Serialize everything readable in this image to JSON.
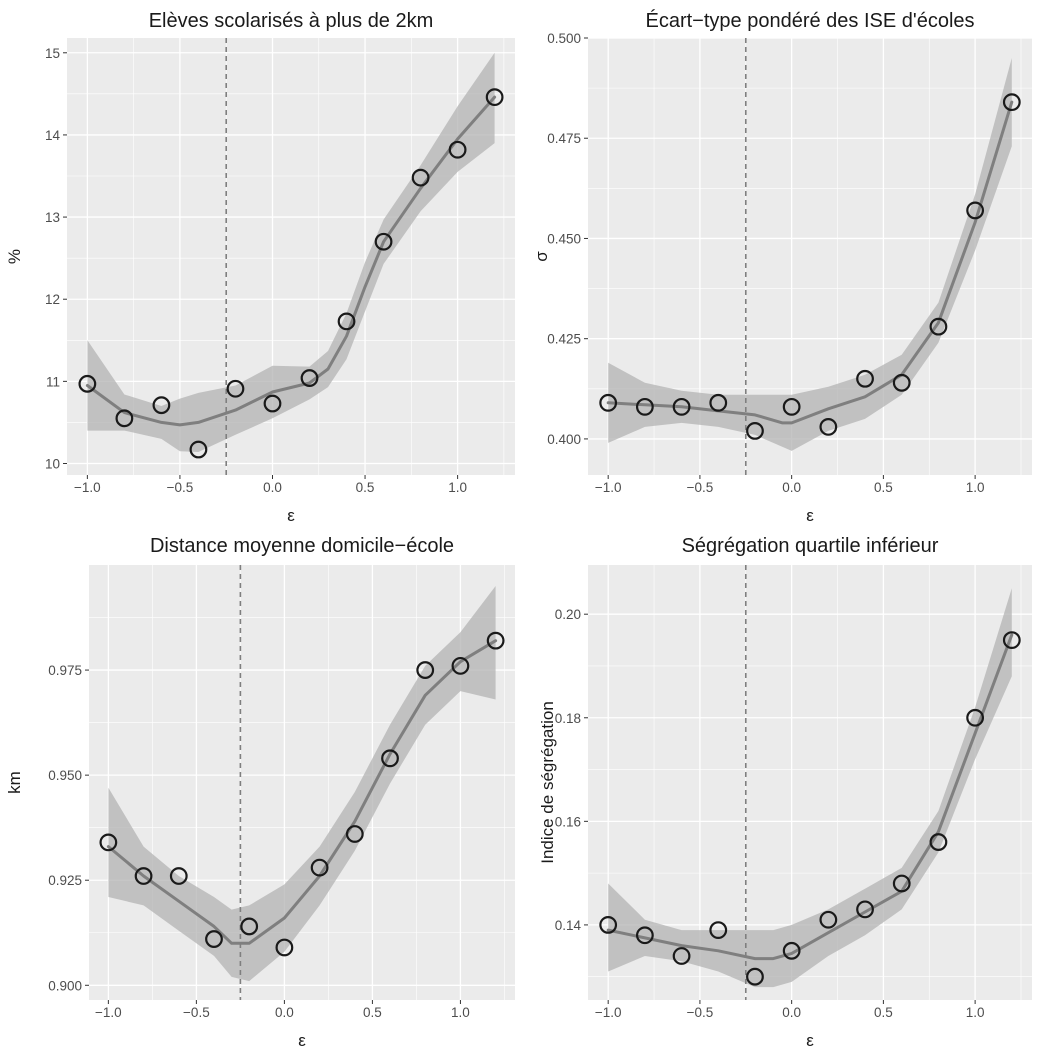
{
  "figure": {
    "colors": {
      "panel_bg": "#ebebeb",
      "grid_major": "#ffffff",
      "ribbon": "#b3b3b3",
      "smooth_line": "#7f7f7f",
      "points": "#1a1a1a",
      "vline": "#7f7f7f"
    }
  },
  "chart_data": [
    {
      "type": "scatter",
      "title": "Elèves scolarisés à plus de 2km",
      "xlabel": "ε",
      "ylabel": "%",
      "xlim": [
        -1.11,
        1.31
      ],
      "ylim": [
        9.86,
        15.18
      ],
      "xticks": [
        -1.0,
        -0.5,
        0.0,
        0.5,
        1.0
      ],
      "xtick_labels": [
        "−1.0",
        "−0.5",
        "0.0",
        "0.5",
        "1.0"
      ],
      "yticks": [
        10,
        11,
        12,
        13,
        14,
        15
      ],
      "ytick_labels": [
        "10",
        "11",
        "12",
        "13",
        "14",
        "15"
      ],
      "vline_x": -0.25,
      "points": {
        "x": [
          -1.0,
          -0.8,
          -0.6,
          -0.4,
          -0.2,
          0.0,
          0.2,
          0.4,
          0.6,
          0.8,
          1.0,
          1.2
        ],
        "y": [
          10.97,
          10.55,
          10.71,
          10.17,
          10.91,
          10.73,
          11.04,
          11.73,
          12.7,
          13.48,
          13.82,
          14.46
        ]
      },
      "smooth": {
        "x": [
          -1.0,
          -0.8,
          -0.6,
          -0.5,
          -0.4,
          -0.2,
          0.0,
          0.2,
          0.3,
          0.4,
          0.5,
          0.6,
          0.8,
          1.0,
          1.2
        ],
        "y": [
          10.95,
          10.62,
          10.5,
          10.47,
          10.5,
          10.65,
          10.87,
          10.98,
          11.15,
          11.55,
          12.15,
          12.7,
          13.35,
          13.95,
          14.46
        ],
        "lower": [
          10.4,
          10.4,
          10.3,
          10.15,
          10.14,
          10.35,
          10.55,
          10.78,
          10.93,
          11.27,
          11.85,
          12.43,
          13.07,
          13.55,
          13.9
        ],
        "upper": [
          11.5,
          10.84,
          10.7,
          10.79,
          10.86,
          10.95,
          11.19,
          11.18,
          11.37,
          11.83,
          12.45,
          12.97,
          13.63,
          14.35,
          15.0
        ]
      }
    },
    {
      "type": "scatter",
      "title": "Écart−type pondéré des ISE d'écoles",
      "xlabel": "ε",
      "ylabel": "σ",
      "xlim": [
        -1.11,
        1.31
      ],
      "ylim": [
        0.391,
        0.5
      ],
      "xticks": [
        -1.0,
        -0.5,
        0.0,
        0.5,
        1.0
      ],
      "xtick_labels": [
        "−1.0",
        "−0.5",
        "0.0",
        "0.5",
        "1.0"
      ],
      "yticks": [
        0.4,
        0.425,
        0.45,
        0.475,
        0.5
      ],
      "ytick_labels": [
        "0.400",
        "0.425",
        "0.450",
        "0.475",
        "0.500"
      ],
      "vline_x": -0.25,
      "points": {
        "x": [
          -1.0,
          -0.8,
          -0.6,
          -0.4,
          -0.2,
          0.0,
          0.2,
          0.4,
          0.6,
          0.8,
          1.0,
          1.2
        ],
        "y": [
          0.409,
          0.408,
          0.408,
          0.409,
          0.402,
          0.408,
          0.403,
          0.415,
          0.414,
          0.428,
          0.457,
          0.484
        ]
      },
      "smooth": {
        "x": [
          -1.0,
          -0.8,
          -0.6,
          -0.4,
          -0.2,
          -0.05,
          0.0,
          0.2,
          0.4,
          0.6,
          0.8,
          1.0,
          1.2
        ],
        "y": [
          0.409,
          0.4085,
          0.408,
          0.407,
          0.406,
          0.404,
          0.404,
          0.4075,
          0.4105,
          0.416,
          0.429,
          0.454,
          0.484
        ],
        "lower": [
          0.399,
          0.403,
          0.404,
          0.403,
          0.401,
          0.398,
          0.397,
          0.402,
          0.405,
          0.411,
          0.424,
          0.447,
          0.473
        ],
        "upper": [
          0.419,
          0.414,
          0.412,
          0.411,
          0.411,
          0.411,
          0.411,
          0.413,
          0.416,
          0.421,
          0.434,
          0.461,
          0.495
        ]
      }
    },
    {
      "type": "scatter",
      "title": "Distance moyenne domicile−école",
      "xlabel": "ε",
      "ylabel": "km",
      "xlim": [
        -1.11,
        1.31
      ],
      "ylim": [
        0.8965,
        1.0
      ],
      "xticks": [
        -1.0,
        -0.5,
        0.0,
        0.5,
        1.0
      ],
      "xtick_labels": [
        "−1.0",
        "−0.5",
        "0.0",
        "0.5",
        "1.0"
      ],
      "yticks": [
        0.9,
        0.925,
        0.95,
        0.975
      ],
      "ytick_labels": [
        "0.900",
        "0.925",
        "0.950",
        "0.975"
      ],
      "vline_x": -0.25,
      "points": {
        "x": [
          -1.0,
          -0.8,
          -0.6,
          -0.4,
          -0.2,
          0.0,
          0.2,
          0.4,
          0.6,
          0.8,
          1.0,
          1.2
        ],
        "y": [
          0.934,
          0.926,
          0.926,
          0.911,
          0.914,
          0.909,
          0.928,
          0.936,
          0.954,
          0.975,
          0.976,
          0.982
        ]
      },
      "smooth": {
        "x": [
          -1.0,
          -0.8,
          -0.6,
          -0.4,
          -0.3,
          -0.2,
          0.0,
          0.2,
          0.4,
          0.6,
          0.8,
          1.0,
          1.2
        ],
        "y": [
          0.933,
          0.926,
          0.92,
          0.914,
          0.91,
          0.91,
          0.916,
          0.926,
          0.939,
          0.955,
          0.969,
          0.977,
          0.982
        ],
        "lower": [
          0.921,
          0.919,
          0.913,
          0.907,
          0.902,
          0.901,
          0.908,
          0.919,
          0.932,
          0.948,
          0.962,
          0.97,
          0.968
        ],
        "upper": [
          0.947,
          0.933,
          0.926,
          0.921,
          0.918,
          0.919,
          0.924,
          0.933,
          0.946,
          0.962,
          0.976,
          0.984,
          0.995
        ]
      }
    },
    {
      "type": "scatter",
      "title": "Ségrégation quartile inférieur",
      "xlabel": "ε",
      "ylabel": "Indice de ségrégation",
      "xlim": [
        -1.11,
        1.31
      ],
      "ylim": [
        0.1255,
        0.2095
      ],
      "xticks": [
        -1.0,
        -0.5,
        0.0,
        0.5,
        1.0
      ],
      "xtick_labels": [
        "−1.0",
        "−0.5",
        "0.0",
        "0.5",
        "1.0"
      ],
      "yticks": [
        0.14,
        0.16,
        0.18,
        0.2
      ],
      "ytick_labels": [
        "0.14",
        "0.16",
        "0.18",
        "0.20"
      ],
      "vline_x": -0.25,
      "points": {
        "x": [
          -1.0,
          -0.8,
          -0.6,
          -0.4,
          -0.2,
          0.0,
          0.2,
          0.4,
          0.6,
          0.8,
          1.0,
          1.2
        ],
        "y": [
          0.14,
          0.138,
          0.134,
          0.139,
          0.13,
          0.135,
          0.141,
          0.143,
          0.148,
          0.156,
          0.18,
          0.195
        ]
      },
      "smooth": {
        "x": [
          -1.0,
          -0.8,
          -0.6,
          -0.4,
          -0.2,
          -0.1,
          0.0,
          0.2,
          0.4,
          0.6,
          0.8,
          1.0,
          1.2
        ],
        "y": [
          0.139,
          0.1375,
          0.136,
          0.135,
          0.1335,
          0.1335,
          0.1345,
          0.1385,
          0.1425,
          0.1465,
          0.158,
          0.177,
          0.196
        ],
        "lower": [
          0.131,
          0.134,
          0.133,
          0.131,
          0.128,
          0.128,
          0.129,
          0.134,
          0.138,
          0.143,
          0.154,
          0.172,
          0.188
        ],
        "upper": [
          0.148,
          0.141,
          0.139,
          0.139,
          0.139,
          0.139,
          0.14,
          0.143,
          0.147,
          0.151,
          0.162,
          0.182,
          0.205
        ]
      }
    }
  ]
}
